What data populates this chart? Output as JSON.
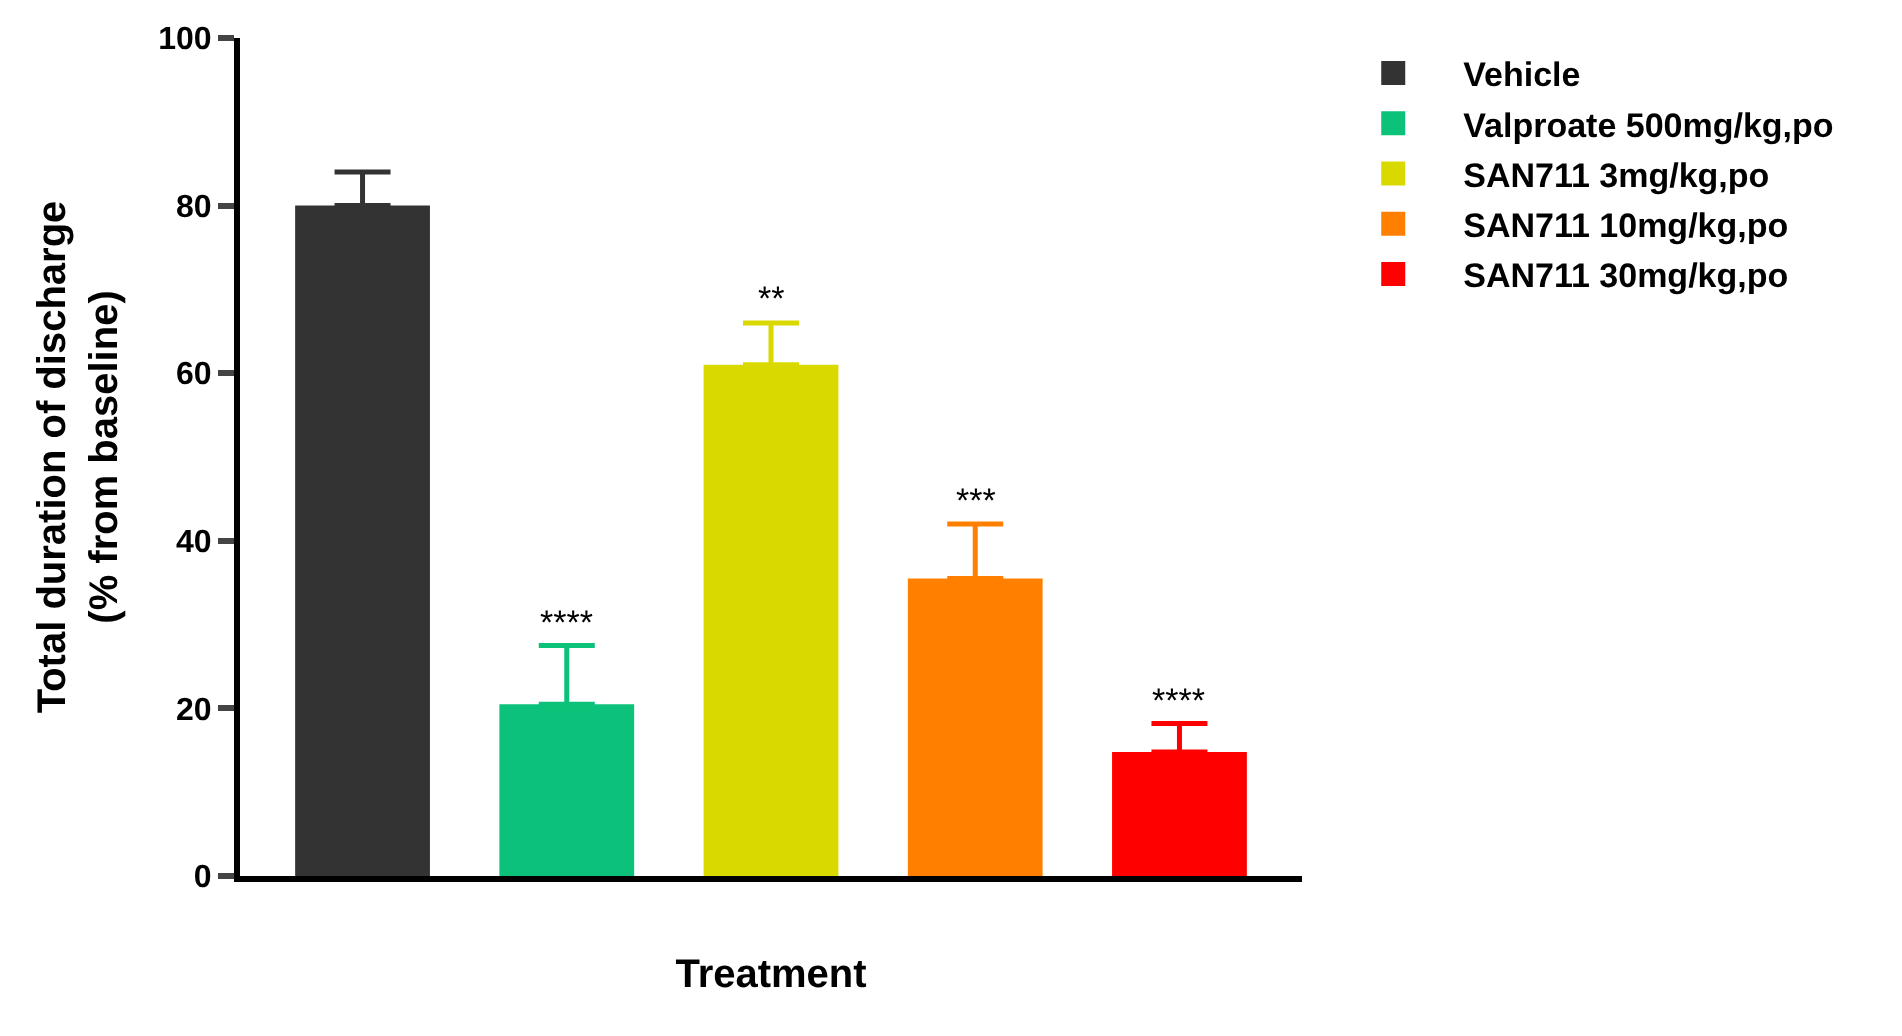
{
  "chart_data": {
    "type": "bar",
    "xlabel": "Treatment",
    "ylabel": "Total duration of discharge\n(% from baseline)",
    "categories": [
      null,
      null,
      null,
      null,
      null
    ],
    "series": [
      {
        "name": "Vehicle",
        "color": "#333333",
        "values": [
          80,
          null,
          null,
          null,
          null
        ],
        "errors": [
          [
            80,
            84
          ],
          null,
          null,
          null,
          null
        ]
      },
      {
        "name": "Valproate 500mg/kg,po",
        "color": "#0cc27a",
        "values": [
          null,
          20.5,
          null,
          null,
          null
        ],
        "errors": [
          null,
          [
            20.5,
            27.5
          ],
          null,
          null,
          null
        ],
        "value_labels": [
          null,
          "****",
          null,
          null,
          null
        ]
      },
      {
        "name": "SAN711 3mg/kg,po",
        "color": "#d9d900",
        "values": [
          null,
          null,
          61,
          null,
          null
        ],
        "errors": [
          null,
          null,
          [
            61,
            66
          ],
          null,
          null
        ],
        "value_labels": [
          null,
          null,
          "**",
          null,
          null
        ]
      },
      {
        "name": "SAN711 10mg/kg,po",
        "color": "#ff8000",
        "values": [
          null,
          null,
          null,
          35.5,
          null
        ],
        "errors": [
          null,
          null,
          null,
          [
            35.5,
            42
          ],
          null
        ],
        "value_labels": [
          null,
          null,
          null,
          "***",
          null
        ]
      },
      {
        "name": "SAN711 30mg/kg,po",
        "color": "#ff0000",
        "values": [
          null,
          null,
          null,
          null,
          14.8
        ],
        "errors": [
          null,
          null,
          null,
          null,
          [
            14.8,
            18.2
          ]
        ],
        "value_labels": [
          null,
          null,
          null,
          null,
          "****"
        ]
      }
    ],
    "ylim": [
      0,
      100
    ],
    "yticks": [
      0,
      20,
      40,
      60,
      80,
      100
    ],
    "legend": "top right",
    "tick_labels": "y"
  }
}
